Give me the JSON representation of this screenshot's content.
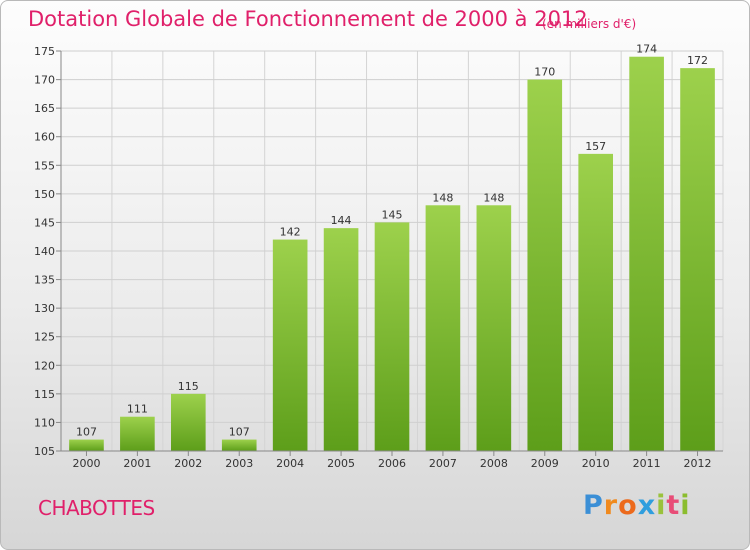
{
  "chart_data": {
    "type": "bar",
    "title": "Dotation Globale de Fonctionnement de 2000 à 2012",
    "subtitle": "(en milliers d'€)",
    "categories": [
      "2000",
      "2001",
      "2002",
      "2003",
      "2004",
      "2005",
      "2006",
      "2007",
      "2008",
      "2009",
      "2010",
      "2011",
      "2012"
    ],
    "values": [
      107,
      111,
      115,
      107,
      142,
      144,
      145,
      148,
      148,
      170,
      157,
      174,
      172
    ],
    "ylim": [
      105,
      175
    ],
    "yticks": [
      105,
      110,
      115,
      120,
      125,
      130,
      135,
      140,
      145,
      150,
      155,
      160,
      165,
      170,
      175
    ],
    "xlabel": "",
    "ylabel": "",
    "grid": true,
    "bar_color_top": "#9dd14c",
    "bar_color_bottom": "#5d9e1a"
  },
  "footer": {
    "city": "CHABOTTES",
    "logo_letters": [
      "P",
      "r",
      "o",
      "x",
      "i",
      "t",
      "i"
    ]
  },
  "colors": {
    "accent": "#e0206a"
  }
}
